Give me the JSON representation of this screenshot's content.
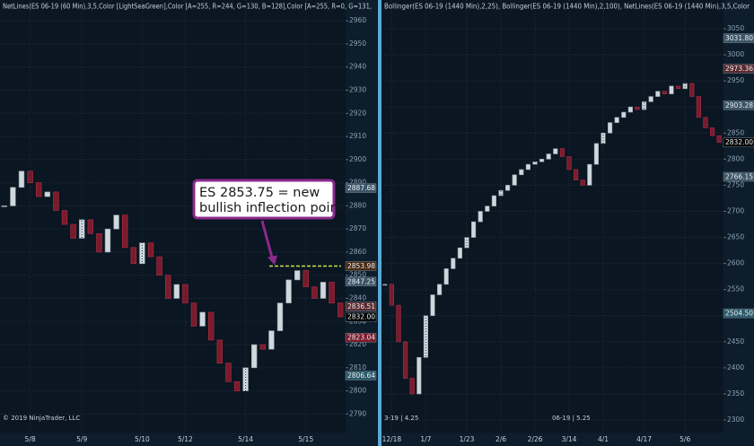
{
  "chart_data": [
    {
      "type": "candlestick",
      "title": "NetLines(ES 06-19 (60 Min),3,5,Color [LightSeaGreen],Color [A=255, R=244, G=130, B=128],Color [A=255, R=0, G=131,",
      "footer": "© 2019 NinjaTrader, LLC",
      "ylim": [
        2782,
        2969
      ],
      "yticks": [
        2790,
        2800,
        2810,
        2820,
        2830,
        2840,
        2850,
        2860,
        2870,
        2880,
        2890,
        2900,
        2910,
        2920,
        2930,
        2940,
        2950,
        2960
      ],
      "categories": [
        null,
        null,
        null,
        "5/8",
        null,
        null,
        null,
        null,
        null,
        "5/9",
        null,
        null,
        null,
        null,
        null,
        null,
        "5/10",
        null,
        null,
        null,
        null,
        "5/12",
        null,
        null,
        null,
        null,
        null,
        null,
        "5/14",
        null,
        null,
        null,
        null,
        null,
        null,
        "5/15",
        null,
        null,
        null,
        null
      ],
      "values": [
        2880,
        2888,
        2895,
        2890,
        2884,
        2886,
        2878,
        2872,
        2866,
        2874,
        2868,
        2860,
        2870,
        2876,
        2862,
        2855,
        2864,
        2858,
        2850,
        2840,
        2846,
        2838,
        2828,
        2834,
        2822,
        2812,
        2804,
        2800,
        2810,
        2820,
        2818,
        2826,
        2838,
        2848,
        2852,
        2845,
        2840,
        2847,
        2838,
        2832
      ],
      "up_color": "#cfd8dc",
      "down_color": "#7a1b2c",
      "price_labels": [
        {
          "value": 2887.68,
          "label": "2887.68",
          "color": "#3d5566"
        },
        {
          "value": 2853.98,
          "label": "2853.98",
          "color": "#4a2a14"
        },
        {
          "value": 2847.25,
          "label": "2847.25",
          "color": "#3d5566"
        },
        {
          "value": 2836.51,
          "label": "2836.51",
          "color": "#5a2a30"
        },
        {
          "value": 2832,
          "label": "2832.00",
          "color": "#000000"
        },
        {
          "value": 2823.04,
          "label": "2823.04",
          "color": "#7a1b2c"
        },
        {
          "value": 2806.64,
          "label": "2806.64",
          "color": "#2e5a6a"
        }
      ],
      "annotation": {
        "text_lines": [
          "ES 2853.75 = new",
          "bullish inflection point."
        ],
        "level": 2853.98,
        "level_color": "#c8e04a"
      }
    },
    {
      "type": "candlestick",
      "title": "Bollinger(ES 06-19 (1440 Min),2,25), Bollinger(ES 06-19 (1440 Min),2,100), NetLines(ES 06-19 (1440 Min),3,5,Color",
      "footer": "06-19 | 5.25",
      "footer_left": "3-19 | 4.25",
      "ylim": [
        2276,
        3105
      ],
      "yticks": [
        2300,
        2350,
        2400,
        2450,
        2500,
        2550,
        2600,
        2650,
        2700,
        2750,
        2800,
        2850,
        2900,
        2950,
        3000,
        3050
      ],
      "categories": [
        null,
        "12/18",
        null,
        null,
        null,
        null,
        "1/7",
        null,
        null,
        null,
        null,
        null,
        "1/23",
        null,
        null,
        null,
        null,
        "2/6",
        null,
        null,
        null,
        null,
        "2/26",
        null,
        null,
        null,
        null,
        "3/14",
        null,
        null,
        null,
        null,
        "4/1",
        null,
        null,
        null,
        null,
        null,
        "4/17",
        null,
        null,
        null,
        null,
        null,
        "5/6",
        null,
        null,
        null,
        null,
        null
      ],
      "values": [
        2560,
        2520,
        2450,
        2380,
        2350,
        2420,
        2500,
        2540,
        2560,
        2590,
        2610,
        2630,
        2650,
        2680,
        2700,
        2710,
        2730,
        2740,
        2750,
        2770,
        2780,
        2790,
        2795,
        2800,
        2810,
        2820,
        2805,
        2780,
        2760,
        2750,
        2790,
        2830,
        2850,
        2870,
        2880,
        2890,
        2900,
        2895,
        2910,
        2920,
        2930,
        2925,
        2940,
        2935,
        2945,
        2920,
        2880,
        2860,
        2845,
        2832
      ],
      "up_color": "#cfd8dc",
      "down_color": "#7a1b2c",
      "price_labels": [
        {
          "value": 3031.8,
          "label": "3031.80",
          "color": "#3d5566"
        },
        {
          "value": 2973.36,
          "label": "2973.36",
          "color": "#5a2a30"
        },
        {
          "value": 2903.28,
          "label": "2903.28",
          "color": "#3d5566"
        },
        {
          "value": 2832,
          "label": "2832.00",
          "color": "#000000"
        },
        {
          "value": 2766.15,
          "label": "2766.15",
          "color": "#3d5566"
        },
        {
          "value": 2504.5,
          "label": "2504.50",
          "color": "#2e5a6a"
        }
      ]
    }
  ]
}
